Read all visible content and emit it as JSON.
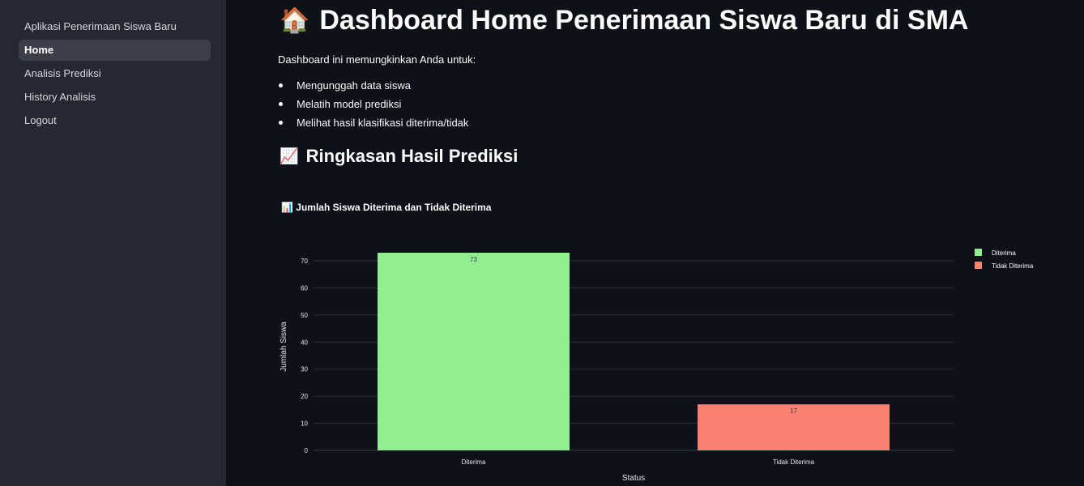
{
  "sidebar": {
    "items": [
      {
        "label": "Aplikasi Penerimaan Siswa Baru",
        "active": false
      },
      {
        "label": "Home",
        "active": true
      },
      {
        "label": "Analisis Prediksi",
        "active": false
      },
      {
        "label": "History Analisis",
        "active": false
      },
      {
        "label": "Logout",
        "active": false
      }
    ]
  },
  "main": {
    "title_icon": "🏠",
    "title": "Dashboard Home Penerimaan Siswa Baru di SMA",
    "intro": "Dashboard ini memungkinkan Anda untuk:",
    "bullets": [
      "Mengunggah data siswa",
      "Melatih model prediksi",
      "Melihat hasil klasifikasi diterima/tidak"
    ],
    "section_icon": "📈",
    "section_title": "Ringkasan Hasil Prediksi"
  },
  "chart_data": {
    "type": "bar",
    "title": "📊 Jumlah Siswa Diterima dan Tidak Diterima",
    "categories": [
      "Diterima",
      "Tidak Diterima"
    ],
    "values": [
      73,
      17
    ],
    "colors": [
      "#90ee90",
      "#fa8072"
    ],
    "xlabel": "Status",
    "ylabel": "Jumlah Siswa",
    "ylim": [
      0,
      73
    ],
    "yticks": [
      0,
      10,
      20,
      30,
      40,
      50,
      60,
      70
    ],
    "grid": true,
    "legend": {
      "placement": "top-right",
      "entries": [
        {
          "name": "Diterima",
          "color": "#90ee90"
        },
        {
          "name": "Tidak Diterima",
          "color": "#fa8072"
        }
      ]
    },
    "data_labels": [
      "73",
      "17"
    ]
  }
}
